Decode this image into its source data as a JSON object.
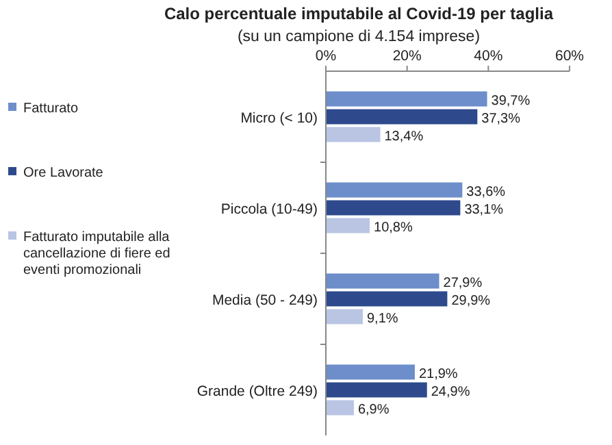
{
  "chart_data": {
    "type": "bar",
    "orientation": "horizontal",
    "title": "Calo percentuale imputabile al Covid-19 per taglia",
    "subtitle": "(su un campione di 4.154 imprese)",
    "categories": [
      "Micro (< 10)",
      "Piccola (10-49)",
      "Media (50 - 249)",
      "Grande (Oltre 249)"
    ],
    "series": [
      {
        "name": "Fatturato",
        "color": "#6d8ecb",
        "values": [
          39.7,
          33.6,
          27.9,
          21.9
        ],
        "value_labels": [
          "39,7%",
          "33,6%",
          "27,9%",
          "21,9%"
        ]
      },
      {
        "name": "Ore Lavorate",
        "color": "#2e4a8c",
        "values": [
          37.3,
          33.1,
          29.9,
          24.9
        ],
        "value_labels": [
          "37,3%",
          "33,1%",
          "29,9%",
          "24,9%"
        ]
      },
      {
        "name": "Fatturato imputabile alla cancellazione di fiere ed eventi promozionali",
        "color": "#b9c5e3",
        "values": [
          13.4,
          10.8,
          9.1,
          6.9
        ],
        "value_labels": [
          "13,4%",
          "10,8%",
          "9,1%",
          "6,9%"
        ]
      }
    ],
    "xlim": [
      0,
      60
    ],
    "xticks": [
      {
        "value": 0,
        "label": "0%"
      },
      {
        "value": 20,
        "label": "20%"
      },
      {
        "value": 40,
        "label": "40%"
      },
      {
        "value": 60,
        "label": "60%"
      }
    ],
    "legend": "left",
    "grid": false
  }
}
